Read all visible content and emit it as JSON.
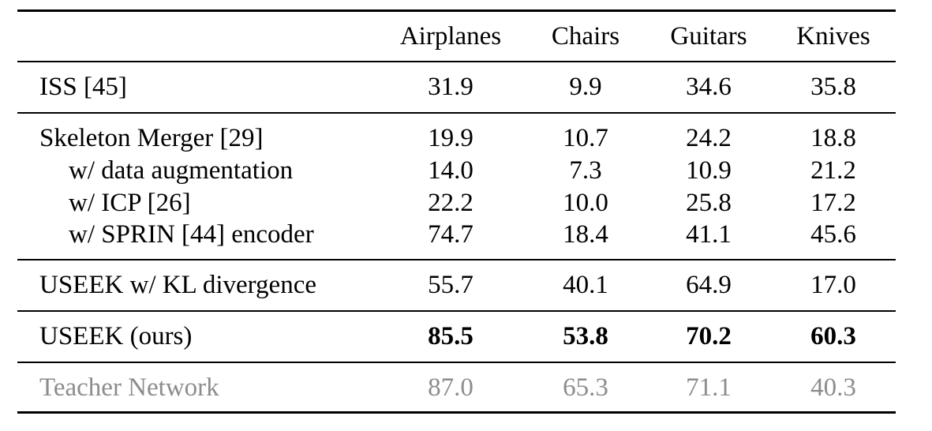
{
  "columns": [
    "Airplanes",
    "Chairs",
    "Guitars",
    "Knives"
  ],
  "groups": [
    {
      "rows": [
        {
          "label": "ISS [45]",
          "values": [
            "31.9",
            "9.9",
            "34.6",
            "35.8"
          ]
        }
      ]
    },
    {
      "rows": [
        {
          "label": "Skeleton Merger [29]",
          "values": [
            "19.9",
            "10.7",
            "24.2",
            "18.8"
          ]
        },
        {
          "label": "w/ data augmentation",
          "values": [
            "14.0",
            "7.3",
            "10.9",
            "21.2"
          ]
        },
        {
          "label": "w/ ICP [26]",
          "values": [
            "22.2",
            "10.0",
            "25.8",
            "17.2"
          ]
        },
        {
          "label": "w/ SPRIN [44] encoder",
          "values": [
            "74.7",
            "18.4",
            "41.1",
            "45.6"
          ]
        }
      ]
    },
    {
      "rows": [
        {
          "label": "USEEK w/ KL divergence",
          "values": [
            "55.7",
            "40.1",
            "64.9",
            "17.0"
          ]
        }
      ]
    },
    {
      "rows": [
        {
          "label": "USEEK (ours)",
          "values": [
            "85.5",
            "53.8",
            "70.2",
            "60.3"
          ]
        }
      ]
    },
    {
      "rows": [
        {
          "label": "Teacher Network",
          "values": [
            "87.0",
            "65.3",
            "71.1",
            "40.3"
          ]
        }
      ]
    }
  ],
  "colors": {
    "text": "#000000",
    "muted_row": "#8c8c8c"
  }
}
